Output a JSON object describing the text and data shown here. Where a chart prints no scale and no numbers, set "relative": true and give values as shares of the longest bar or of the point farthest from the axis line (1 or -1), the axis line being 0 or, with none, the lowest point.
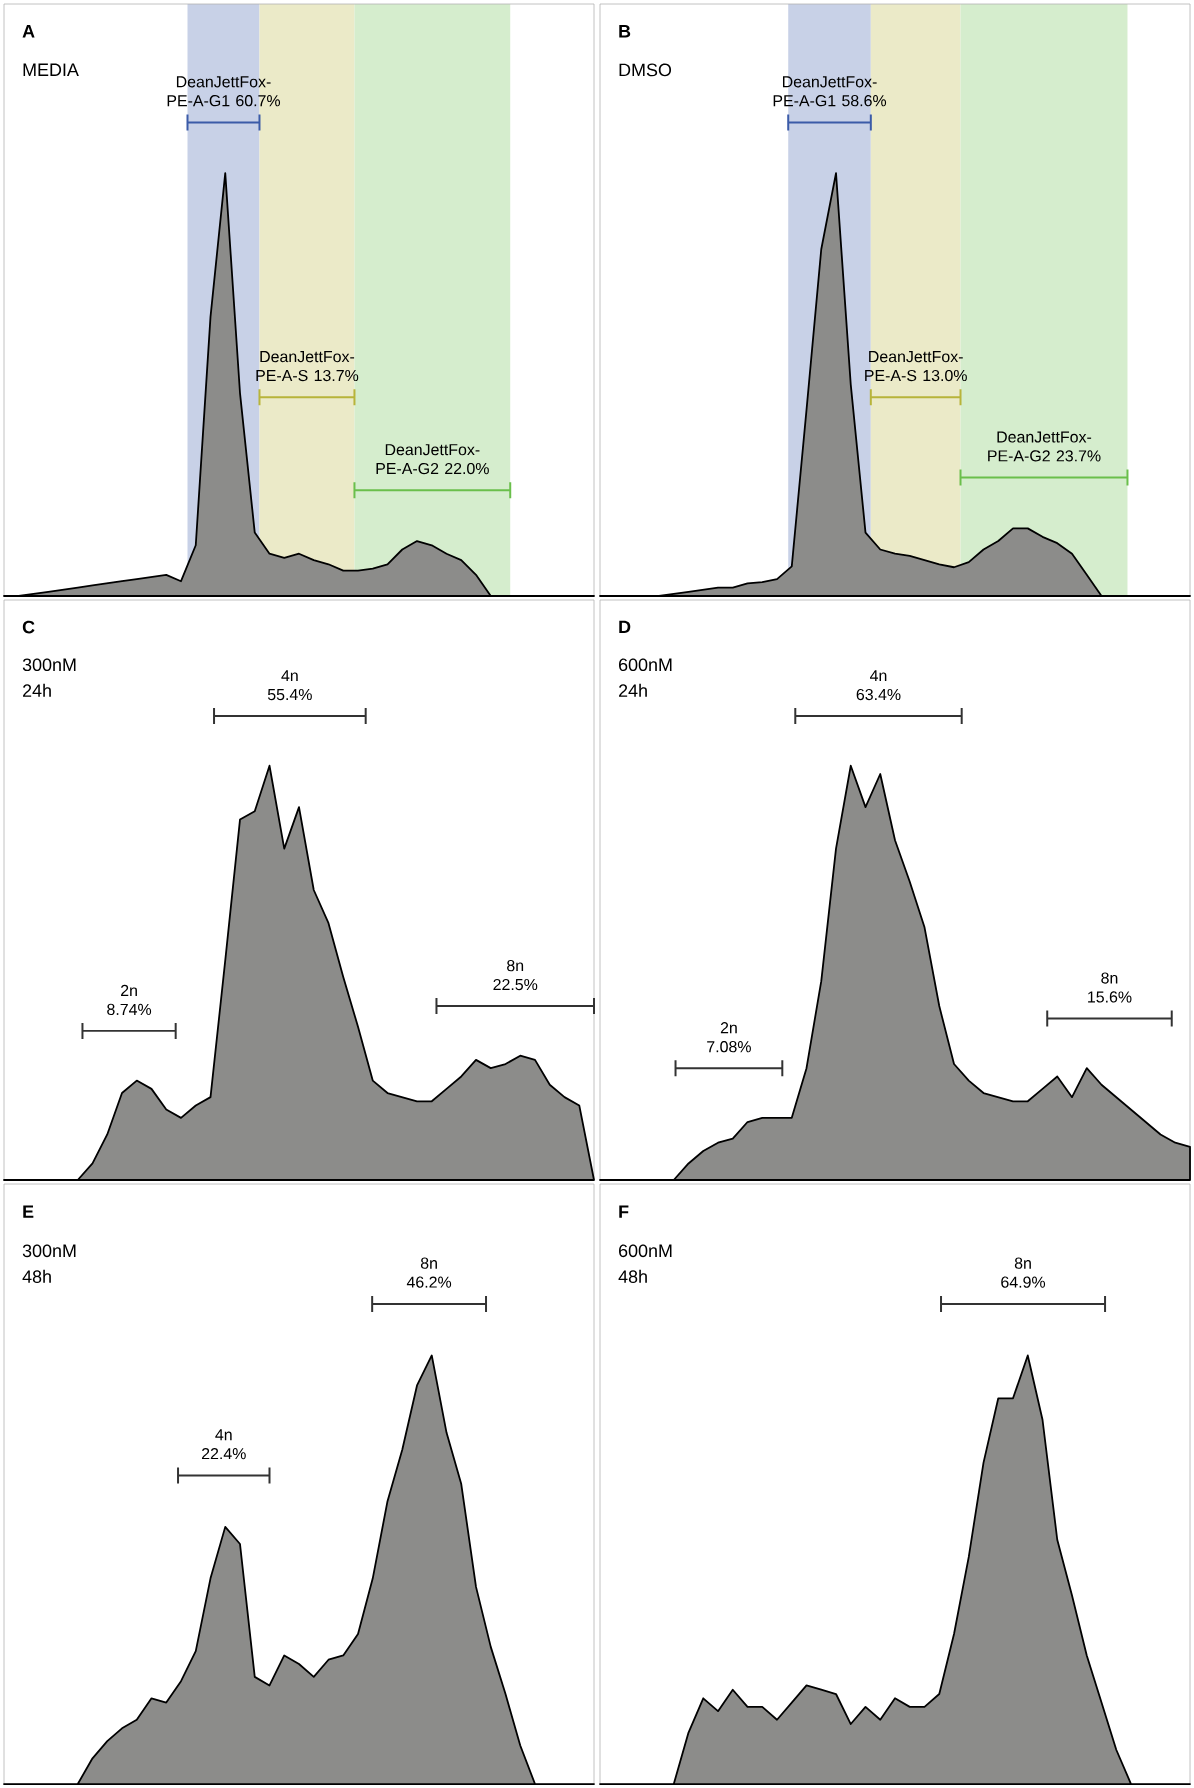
{
  "chart_data": [
    {
      "type": "area",
      "title": "A",
      "subtitle": "MEDIA",
      "relative": true,
      "categories": [
        null,
        null,
        null,
        null,
        null,
        null,
        null,
        null,
        null,
        null,
        null,
        null,
        null,
        null,
        null,
        null,
        null,
        null,
        null,
        null,
        null,
        null,
        null,
        null,
        null,
        null,
        null,
        null,
        null,
        null,
        null,
        null,
        null,
        null,
        null,
        null,
        null,
        null,
        null,
        null,
        null
      ],
      "series": [
        {
          "color": "#8c8c8a",
          "values": [
            0,
            0,
            0.005,
            0.01,
            0.015,
            0.02,
            0.025,
            0.03,
            0.035,
            0.04,
            0.045,
            0.05,
            0.035,
            0.12,
            0.66,
            1,
            0.48,
            0.15,
            0.1,
            0.09,
            0.1,
            0.085,
            0.075,
            0.06,
            0.06,
            0.065,
            0.075,
            0.11,
            0.13,
            0.12,
            0.1,
            0.085,
            0.05,
            0,
            0,
            0,
            0,
            0,
            0,
            0,
            0
          ]
        }
      ],
      "annotations": [
        "DeanJettFox-PE-A-G1 60.7%",
        "DeanJettFox-PE-A-S 13.7%",
        "DeanJettFox-PE-A-G2 22.0%"
      ]
    },
    {
      "type": "area",
      "title": "B",
      "subtitle": "DMSO",
      "relative": true,
      "categories": [
        null,
        null,
        null,
        null,
        null,
        null,
        null,
        null,
        null,
        null,
        null,
        null,
        null,
        null,
        null,
        null,
        null,
        null,
        null,
        null,
        null,
        null,
        null,
        null,
        null,
        null,
        null,
        null,
        null,
        null,
        null,
        null,
        null,
        null,
        null,
        null,
        null,
        null,
        null,
        null,
        null
      ],
      "series": [
        {
          "color": "#8c8c8a",
          "values": [
            0,
            0,
            0,
            0,
            0,
            0.005,
            0.01,
            0.015,
            0.02,
            0.02,
            0.03,
            0.033,
            0.04,
            0.07,
            0.44,
            0.82,
            1,
            0.5,
            0.15,
            0.11,
            0.1,
            0.095,
            0.085,
            0.075,
            0.068,
            0.08,
            0.11,
            0.13,
            0.16,
            0.16,
            0.14,
            0.125,
            0.1,
            0.05,
            0,
            0,
            0,
            0,
            0,
            0,
            0
          ]
        }
      ],
      "annotations": [
        "DeanJettFox-PE-A-G1 58.6%",
        "DeanJettFox-PE-A-S 13.0%",
        "DeanJettFox-PE-A-G2 23.7%"
      ]
    },
    {
      "type": "area",
      "title": "C",
      "subtitle": "300nM 24h",
      "relative": true,
      "categories": [
        null,
        null,
        null,
        null,
        null,
        null,
        null,
        null,
        null,
        null,
        null,
        null,
        null,
        null,
        null,
        null,
        null,
        null,
        null,
        null,
        null,
        null,
        null,
        null,
        null,
        null,
        null,
        null,
        null,
        null,
        null,
        null,
        null,
        null,
        null,
        null,
        null,
        null,
        null,
        null,
        null
      ],
      "series": [
        {
          "color": "#8c8c8a",
          "values": [
            0,
            0,
            0,
            0,
            0,
            0,
            0.04,
            0.11,
            0.21,
            0.24,
            0.22,
            0.17,
            0.15,
            0.18,
            0.2,
            0.53,
            0.87,
            0.89,
            1,
            0.8,
            0.9,
            0.7,
            0.62,
            0.49,
            0.37,
            0.24,
            0.21,
            0.2,
            0.19,
            0.19,
            0.22,
            0.25,
            0.29,
            0.27,
            0.28,
            0.3,
            0.29,
            0.23,
            0.2,
            0.18,
            0
          ]
        }
      ],
      "annotations": [
        "2n 8.74%",
        "4n 55.4%",
        "8n 22.5%"
      ]
    },
    {
      "type": "area",
      "title": "D",
      "subtitle": "600nM 24h",
      "relative": true,
      "categories": [
        null,
        null,
        null,
        null,
        null,
        null,
        null,
        null,
        null,
        null,
        null,
        null,
        null,
        null,
        null,
        null,
        null,
        null,
        null,
        null,
        null,
        null,
        null,
        null,
        null,
        null,
        null,
        null,
        null,
        null,
        null,
        null,
        null,
        null,
        null,
        null,
        null,
        null,
        null,
        null,
        null
      ],
      "series": [
        {
          "color": "#8c8c8a",
          "values": [
            0,
            0,
            0,
            0,
            0,
            0,
            0.04,
            0.07,
            0.09,
            0.1,
            0.14,
            0.15,
            0.15,
            0.15,
            0.27,
            0.48,
            0.8,
            1,
            0.9,
            0.98,
            0.82,
            0.72,
            0.61,
            0.42,
            0.28,
            0.24,
            0.21,
            0.2,
            0.19,
            0.19,
            0.22,
            0.25,
            0.2,
            0.27,
            0.23,
            0.2,
            0.17,
            0.14,
            0.11,
            0.09,
            0.08
          ]
        }
      ],
      "annotations": [
        "2n 7.08%",
        "4n 63.4%",
        "8n 15.6%"
      ]
    },
    {
      "type": "area",
      "title": "E",
      "subtitle": "300nM 48h",
      "relative": true,
      "categories": [
        null,
        null,
        null,
        null,
        null,
        null,
        null,
        null,
        null,
        null,
        null,
        null,
        null,
        null,
        null,
        null,
        null,
        null,
        null,
        null,
        null,
        null,
        null,
        null,
        null,
        null,
        null,
        null,
        null,
        null,
        null,
        null,
        null,
        null,
        null,
        null,
        null,
        null,
        null,
        null,
        null
      ],
      "series": [
        {
          "color": "#8c8c8a",
          "values": [
            0,
            0,
            0,
            0,
            0,
            0,
            0.06,
            0.1,
            0.13,
            0.15,
            0.2,
            0.19,
            0.24,
            0.31,
            0.48,
            0.6,
            0.56,
            0.25,
            0.23,
            0.3,
            0.28,
            0.25,
            0.29,
            0.3,
            0.35,
            0.48,
            0.66,
            0.78,
            0.93,
            1,
            0.82,
            0.7,
            0.46,
            0.32,
            0.21,
            0.09,
            0,
            0,
            0,
            0,
            0
          ]
        }
      ],
      "annotations": [
        "4n 22.4%",
        "8n 46.2%"
      ]
    },
    {
      "type": "area",
      "title": "F",
      "subtitle": "600nM 48h",
      "relative": true,
      "categories": [
        null,
        null,
        null,
        null,
        null,
        null,
        null,
        null,
        null,
        null,
        null,
        null,
        null,
        null,
        null,
        null,
        null,
        null,
        null,
        null,
        null,
        null,
        null,
        null,
        null,
        null,
        null,
        null,
        null,
        null,
        null,
        null,
        null,
        null,
        null,
        null,
        null,
        null,
        null,
        null,
        null
      ],
      "series": [
        {
          "color": "#8c8c8a",
          "values": [
            0,
            0,
            0,
            0,
            0,
            0,
            0.12,
            0.2,
            0.17,
            0.22,
            0.18,
            0.18,
            0.15,
            0.19,
            0.23,
            0.22,
            0.21,
            0.14,
            0.18,
            0.15,
            0.2,
            0.18,
            0.18,
            0.21,
            0.35,
            0.53,
            0.75,
            0.9,
            0.9,
            1,
            0.85,
            0.57,
            0.44,
            0.3,
            0.19,
            0.08,
            0,
            0,
            0,
            0,
            0
          ]
        }
      ],
      "annotations": [
        "8n 64.9%"
      ]
    }
  ]
}
